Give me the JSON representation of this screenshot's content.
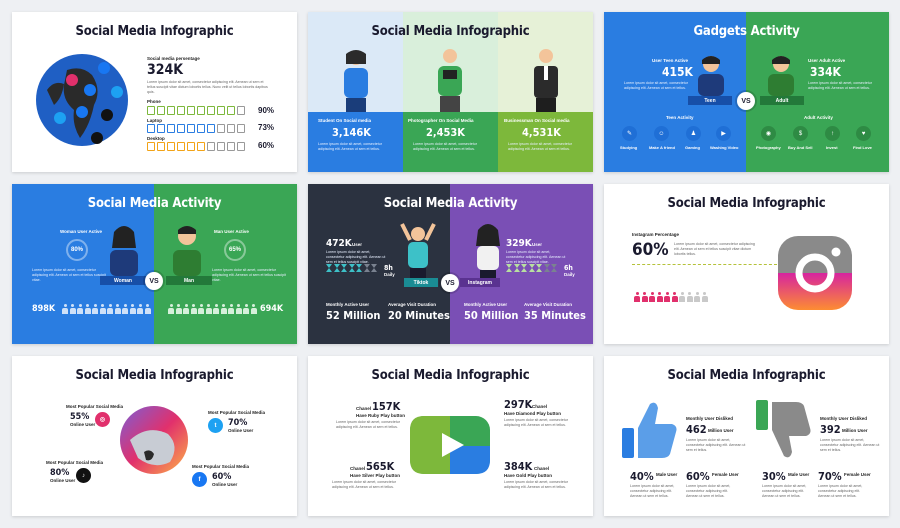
{
  "s1": {
    "title": "Social Media Infographic",
    "label": "Social media persentage",
    "value": "324K",
    "desc": "Lorem ipsum dolor sit amet, consectetur adipiscing elit. Aenean ut sem et tellus suscipit vitae dictum lobortis tellus. Nunc velit ut tellus lobortis dapibus quis.",
    "rows": [
      {
        "label": "Phone",
        "pct": "90%",
        "color": "#7db83b"
      },
      {
        "label": "Laptop",
        "pct": "73%",
        "color": "#2a7de1"
      },
      {
        "label": "Desktop",
        "pct": "60%",
        "color": "#f2a317"
      }
    ]
  },
  "s2": {
    "title": "Social Media Infographic",
    "cols": [
      {
        "label": "Student On Social media",
        "value": "3,146K",
        "desc": "Lorem ipsum dolor sit amet, consectetur adipiscing elit. Aenean ut sem et tellus.",
        "bg": "#2a7de1",
        "top": "#dbe9f7"
      },
      {
        "label": "Photographer On Social Media",
        "value": "2,453K",
        "desc": "Lorem ipsum dolor sit amet, consectetur adipiscing elit. Aenean ut sem et tellus.",
        "bg": "#3aa655",
        "top": "#d9efdb"
      },
      {
        "label": "Businessman On Social media",
        "value": "4,531K",
        "desc": "Lorem ipsum dolor sit amet, consectetur adipiscing elit. Aenean ut sem et tellus.",
        "bg": "#7db83b",
        "top": "#e6f1d7"
      }
    ]
  },
  "s3": {
    "title": "Gadgets Activity",
    "teen_label": "User Teen Active",
    "teen_value": "415K",
    "adult_label": "User Adult Active",
    "adult_value": "334K",
    "desc": "Lorem ipsum dolor sit amet, consectetur adipiscing elit. Aenean ut sem et tellus.",
    "teen": "Teen",
    "adult": "Adult",
    "vs": "VS",
    "teen_activity": "Teen Activity",
    "adult_activity": "Adult Activity",
    "teen_items": [
      "Studying",
      "Make A friend",
      "Gaming",
      "Washing Video"
    ],
    "adult_items": [
      "Photography",
      "Buy And Sell",
      "Invest",
      "Find Love"
    ]
  },
  "s4": {
    "title": "Social Media Activity",
    "woman_label": "Woman User Active",
    "man_label": "Man User Active",
    "woman_pct": "80%",
    "man_pct": "65%",
    "desc": "Lorem ipsum dolor sit amet, consectetur adipiscing elit. Aenean ut sem et tellus suscipit vitae.",
    "woman": "Woman",
    "man": "Man",
    "vs": "VS",
    "woman_total": "898K",
    "man_total": "694K"
  },
  "s5": {
    "title": "Social Media Activity",
    "left_value": "472K",
    "right_value": "329K",
    "unit": "User",
    "left_hours": "8h",
    "right_hours": "6h",
    "hours_label": "Daily",
    "left_app": "Tiktok",
    "right_app": "Instagram",
    "vs": "VS",
    "stats": [
      {
        "label": "Monthly Active User",
        "value": "52 Million"
      },
      {
        "label": "Average Visit Duration",
        "value": "20 Minutes"
      },
      {
        "label": "Monthly Active User",
        "value": "50 Million"
      },
      {
        "label": "Average Visit Duration",
        "value": "35 Minutes"
      }
    ]
  },
  "s6": {
    "title": "Social Media Infographic",
    "label": "Instagram Percentage",
    "pct": "60%",
    "desc": "Lorem ipsum dolor sit amet, consectetur adipiscing elit. Aenean ut sem et tellus suscipit vitae dictum lobortis tellus.",
    "filled": 6,
    "total": 10
  },
  "s7": {
    "title": "Social Media Infographic",
    "callout": "Most Popular Social Media",
    "online": "Online User",
    "items": [
      {
        "pct": "55%",
        "app": "instagram"
      },
      {
        "pct": "70%",
        "app": "twitter"
      },
      {
        "pct": "80%",
        "app": "tiktok"
      },
      {
        "pct": "60%",
        "app": "facebook"
      }
    ]
  },
  "s8": {
    "title": "Social Media Infographic",
    "channel": "Chanel",
    "items": [
      {
        "value": "157K",
        "label": "Have Ruby Play button",
        "desc": "Lorem ipsum dolor sit amet, consectetur adipiscing elit. Aenean ut sem et tellus."
      },
      {
        "value": "297K",
        "label": "Have Diamond Play button",
        "desc": "Lorem ipsum dolor sit amet, consectetur adipiscing elit. Aenean ut sem et tellus."
      },
      {
        "value": "565K",
        "label": "Have Silver Play button",
        "desc": "Lorem ipsum dolor sit amet, consectetur adipiscing elit. Aenean ut sem et tellus."
      },
      {
        "value": "384K",
        "label": "Have Gold Play button",
        "desc": "Lorem ipsum dolor sit amet, consectetur adipiscing elit. Aenean ut sem et tellus."
      }
    ]
  },
  "s9": {
    "title": "Social Media Infographic",
    "like_label": "Monthly User Disliked",
    "like_value": "462",
    "dislike_label": "Monthly User Disliked",
    "dislike_value": "392",
    "unit": "Million User",
    "desc": "Lorem ipsum dolor sit amet, consectetur adipiscing elit. Aenean ut sem et tellus.",
    "stats": [
      {
        "pct": "40%",
        "label": "Male User"
      },
      {
        "pct": "60%",
        "label": "Female User"
      },
      {
        "pct": "30%",
        "label": "Male User"
      },
      {
        "pct": "70%",
        "label": "Female User"
      }
    ]
  }
}
